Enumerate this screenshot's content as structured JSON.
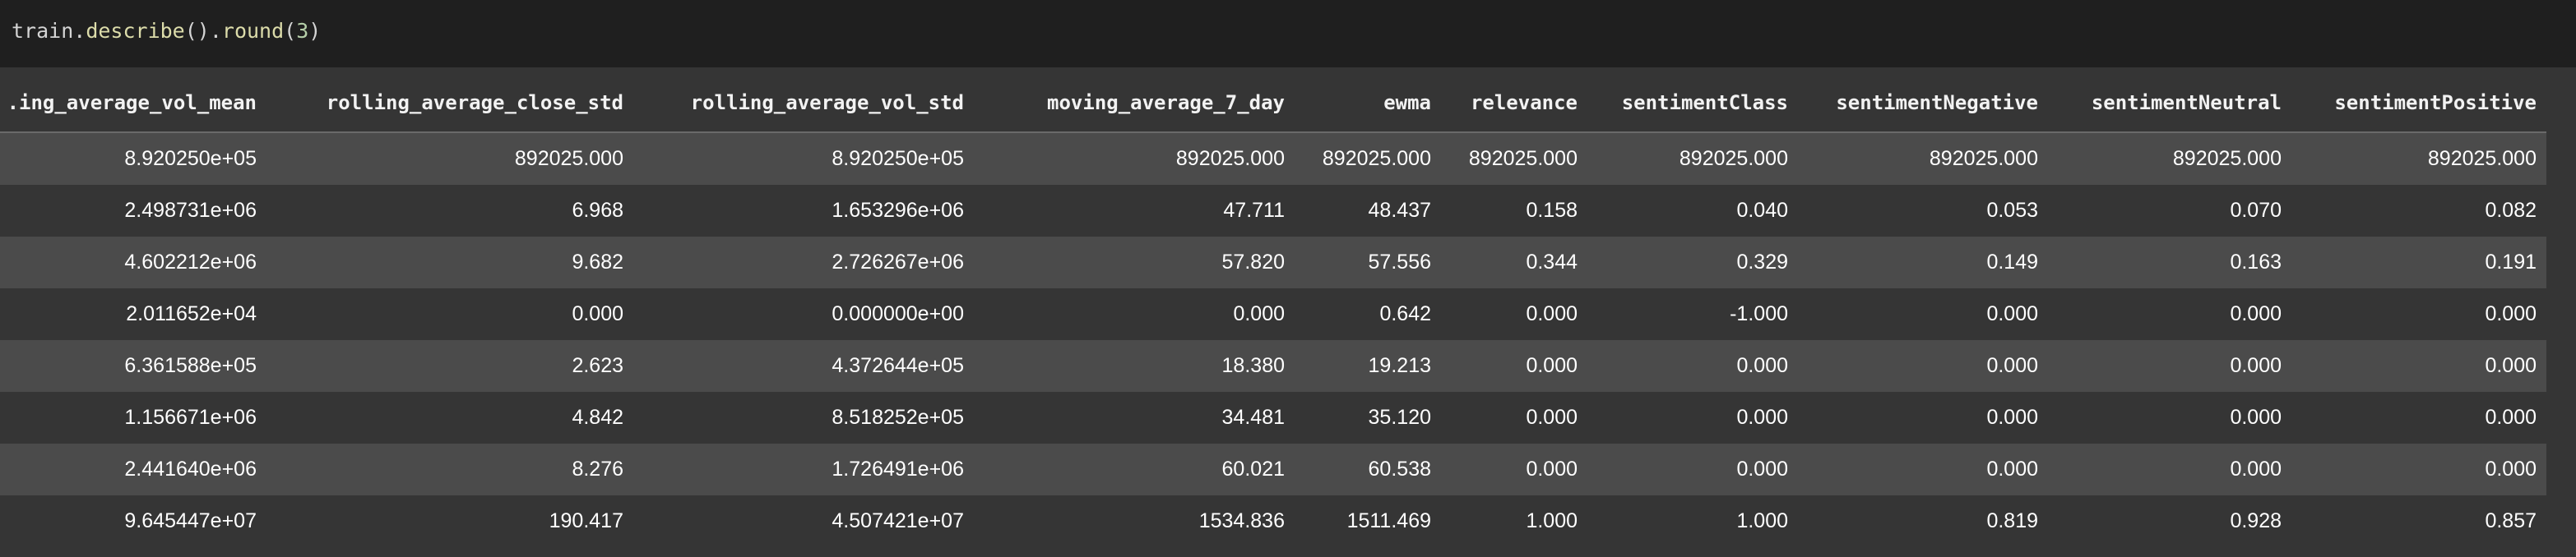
{
  "code": {
    "object": "train",
    "method1": "describe",
    "method2": "round",
    "arg": "3"
  },
  "table": {
    "columns": [
      ".ing_average_vol_mean",
      "rolling_average_close_std",
      "rolling_average_vol_std",
      "moving_average_7_day",
      "ewma",
      "relevance",
      "sentimentClass",
      "sentimentNegative",
      "sentimentNeutral",
      "sentimentPositive"
    ],
    "rows": [
      [
        "8.920250e+05",
        "892025.000",
        "8.920250e+05",
        "892025.000",
        "892025.000",
        "892025.000",
        "892025.000",
        "892025.000",
        "892025.000",
        "892025.000"
      ],
      [
        "2.498731e+06",
        "6.968",
        "1.653296e+06",
        "47.711",
        "48.437",
        "0.158",
        "0.040",
        "0.053",
        "0.070",
        "0.082"
      ],
      [
        "4.602212e+06",
        "9.682",
        "2.726267e+06",
        "57.820",
        "57.556",
        "0.344",
        "0.329",
        "0.149",
        "0.163",
        "0.191"
      ],
      [
        "2.011652e+04",
        "0.000",
        "0.000000e+00",
        "0.000",
        "0.642",
        "0.000",
        "-1.000",
        "0.000",
        "0.000",
        "0.000"
      ],
      [
        "6.361588e+05",
        "2.623",
        "4.372644e+05",
        "18.380",
        "19.213",
        "0.000",
        "0.000",
        "0.000",
        "0.000",
        "0.000"
      ],
      [
        "1.156671e+06",
        "4.842",
        "8.518252e+05",
        "34.481",
        "35.120",
        "0.000",
        "0.000",
        "0.000",
        "0.000",
        "0.000"
      ],
      [
        "2.441640e+06",
        "8.276",
        "1.726491e+06",
        "60.021",
        "60.538",
        "0.000",
        "0.000",
        "0.000",
        "0.000",
        "0.000"
      ],
      [
        "9.645447e+07",
        "190.417",
        "4.507421e+07",
        "1534.836",
        "1511.469",
        "1.000",
        "1.000",
        "0.819",
        "0.928",
        "0.857"
      ]
    ]
  }
}
